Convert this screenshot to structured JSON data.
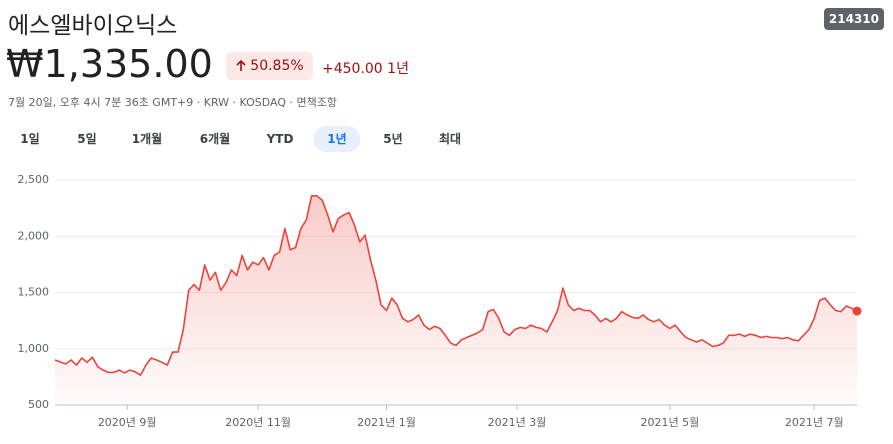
{
  "header": {
    "title": "에스엘바이오닉스",
    "ticker": "214310"
  },
  "quote": {
    "price": "₩1,335.00",
    "change_percent": "50.85%",
    "change": "+450.00",
    "period": "1년",
    "meta": "7월 20일, 오후 4시 7분 36초 GMT+9 · KRW · KOSDAQ · 면책조항"
  },
  "tabs": [
    "1일",
    "5일",
    "1개월",
    "6개월",
    "YTD",
    "1년",
    "5년",
    "최대"
  ],
  "selected_tab": 5,
  "chart_data": {
    "type": "line",
    "color": "#e8453c",
    "grid": true,
    "values": [
      900,
      882,
      865,
      900,
      855,
      918,
      880,
      925,
      840,
      810,
      790,
      790,
      810,
      785,
      810,
      795,
      765,
      855,
      918,
      900,
      880,
      855,
      970,
      970,
      1170,
      1520,
      1570,
      1520,
      1745,
      1610,
      1680,
      1520,
      1590,
      1700,
      1650,
      1830,
      1700,
      1770,
      1745,
      1810,
      1700,
      1830,
      1860,
      2070,
      1880,
      1900,
      2070,
      2145,
      2360,
      2360,
      2320,
      2190,
      2040,
      2160,
      2190,
      2210,
      2100,
      1950,
      2010,
      1790,
      1610,
      1390,
      1340,
      1450,
      1390,
      1270,
      1240,
      1260,
      1300,
      1210,
      1170,
      1200,
      1180,
      1120,
      1050,
      1030,
      1080,
      1100,
      1120,
      1140,
      1170,
      1330,
      1350,
      1270,
      1150,
      1120,
      1170,
      1190,
      1180,
      1210,
      1190,
      1180,
      1150,
      1240,
      1340,
      1540,
      1390,
      1340,
      1360,
      1340,
      1340,
      1300,
      1240,
      1270,
      1240,
      1270,
      1330,
      1300,
      1280,
      1270,
      1300,
      1260,
      1240,
      1260,
      1210,
      1180,
      1210,
      1150,
      1100,
      1080,
      1060,
      1080,
      1050,
      1020,
      1030,
      1050,
      1120,
      1120,
      1130,
      1110,
      1130,
      1120,
      1100,
      1110,
      1100,
      1100,
      1090,
      1100,
      1080,
      1070,
      1120,
      1170,
      1270,
      1430,
      1450,
      1390,
      1340,
      1330,
      1380,
      1360,
      1335
    ],
    "xlim": [
      0,
      150
    ],
    "xticks": [
      {
        "value": 13.5,
        "label": "2020년 9월"
      },
      {
        "value": 38,
        "label": "2020년 11월"
      },
      {
        "value": 62,
        "label": "2021년 1월"
      },
      {
        "value": 86.4,
        "label": "2021년 3월"
      },
      {
        "value": 115,
        "label": "2021년 5월"
      },
      {
        "value": 142,
        "label": "2021년 7월"
      }
    ],
    "ylim": [
      500,
      2500
    ],
    "yticks": [
      500,
      {
        "value": 1000,
        "label": "1,000"
      },
      {
        "value": 1500,
        "label": "1,500"
      },
      {
        "value": 2000,
        "label": "2,000"
      },
      {
        "value": 2500,
        "label": "2,500"
      }
    ]
  }
}
